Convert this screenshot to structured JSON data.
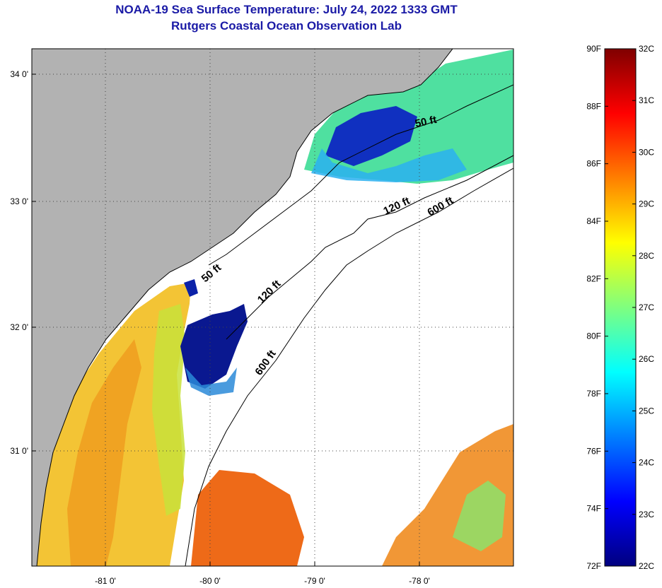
{
  "title": {
    "line1": "NOAA-19 Sea Surface Temperature:  July 24, 2022 1333 GMT",
    "line2": "Rutgers Coastal Ocean Observation Lab"
  },
  "map": {
    "lon_ticks": [
      "-81 0'",
      "-80 0'",
      "-79 0'",
      "-78 0'"
    ],
    "lat_ticks": [
      "34 0'",
      "33 0'",
      "32 0'",
      "31 0'"
    ],
    "contours": [
      "50 ft",
      "120 ft",
      "600 ft"
    ],
    "land_color": "#b2b2b2",
    "cloud_color": "#ffffff"
  },
  "colorbar": {
    "fahrenheit": [
      "90F",
      "88F",
      "86F",
      "84F",
      "82F",
      "80F",
      "78F",
      "76F",
      "74F",
      "72F"
    ],
    "celsius": [
      "32C",
      "31C",
      "30C",
      "29C",
      "28C",
      "27C",
      "26C",
      "25C",
      "24C",
      "23C",
      "22C"
    ],
    "colormap": [
      "#00007f",
      "#0000ff",
      "#007fff",
      "#00ffff",
      "#7fff7f",
      "#ffff00",
      "#ff7f00",
      "#ff0000",
      "#7f0000"
    ]
  }
}
